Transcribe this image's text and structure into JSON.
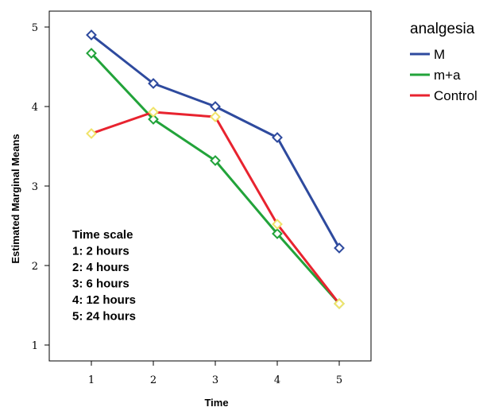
{
  "chart_data": {
    "type": "line",
    "title": "",
    "xlabel": "Time",
    "ylabel": "Estimated Marginal Means",
    "x": [
      1,
      2,
      3,
      4,
      5
    ],
    "x_tick_labels": [
      "1",
      "2",
      "3",
      "4",
      "5"
    ],
    "ylim": [
      1,
      5
    ],
    "y_ticks": [
      1,
      2,
      3,
      4,
      5
    ],
    "y_tick_labels": [
      "1",
      "2",
      "3",
      "4",
      "5"
    ],
    "grid": false,
    "legend": {
      "title": "analgesia",
      "position": "right"
    },
    "series": [
      {
        "name": "M",
        "color": "#2e4a9e",
        "marker_color": "#2e4a9e",
        "values": [
          4.9,
          4.29,
          4.0,
          3.61,
          2.22
        ]
      },
      {
        "name": "m+a",
        "color": "#22a33a",
        "marker_color": "#22a33a",
        "values": [
          4.67,
          3.84,
          3.32,
          2.4,
          1.52
        ]
      },
      {
        "name": "Control",
        "color": "#e8232f",
        "marker_color": "#f0e36a",
        "values": [
          3.66,
          3.93,
          3.87,
          2.52,
          1.52
        ]
      }
    ],
    "annotations": [
      "Time scale",
      "1: 2 hours",
      "2: 4 hours",
      "3: 6 hours",
      "4: 12 hours",
      "5: 24 hours"
    ]
  }
}
